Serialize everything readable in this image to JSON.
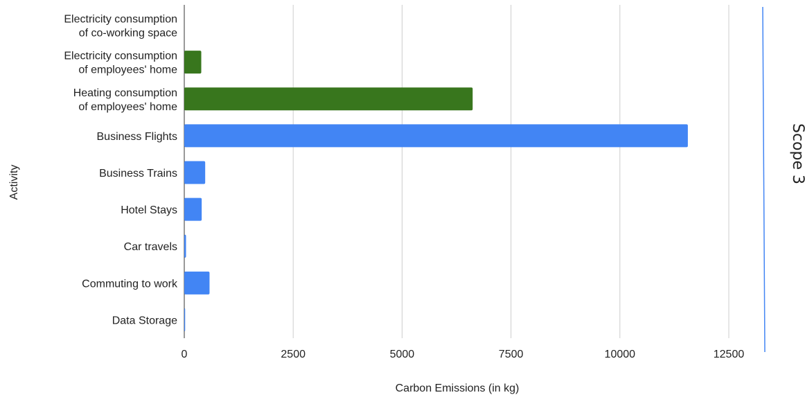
{
  "chart_data": {
    "type": "bar",
    "orientation": "horizontal",
    "title": "",
    "xlabel": "Carbon Emissions (in kg)",
    "ylabel": "Activity",
    "xlim": [
      0,
      13000
    ],
    "xticks": [
      0,
      2500,
      5000,
      7500,
      10000,
      12500
    ],
    "grid": true,
    "categories": [
      [
        "Electricity consumption",
        "of co-working space"
      ],
      [
        "Electricity consumption",
        "of employees' home"
      ],
      [
        "Heating consumption",
        "of employees' home"
      ],
      [
        "Business Flights"
      ],
      [
        "Business Trains"
      ],
      [
        "Hotel Stays"
      ],
      [
        "Car travels"
      ],
      [
        "Commuting to work"
      ],
      [
        "Data Storage"
      ]
    ],
    "values": [
      0,
      390,
      6620,
      11560,
      480,
      400,
      40,
      580,
      20
    ],
    "bar_colors": [
      "#38761d",
      "#38761d",
      "#38761d",
      "#4285f4",
      "#4285f4",
      "#4285f4",
      "#4285f4",
      "#4285f4",
      "#4285f4"
    ],
    "annotation": "Scope 3",
    "annotation_line_color": "#4285f4"
  }
}
